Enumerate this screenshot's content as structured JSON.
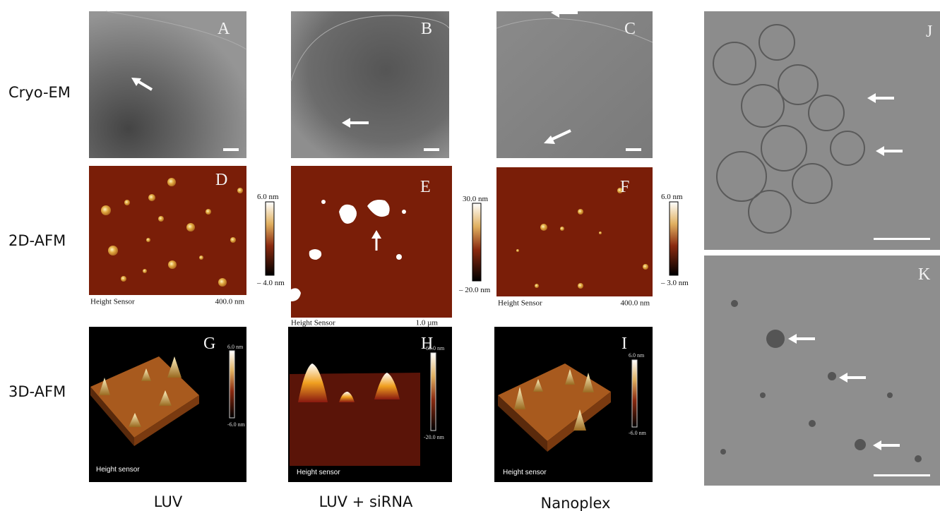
{
  "row_labels": [
    "Cryo-EM",
    "2D-AFM",
    "3D-AFM"
  ],
  "column_labels": [
    "LUV",
    "LUV + siRNA",
    "Nanoplex"
  ],
  "panel_letters": [
    "A",
    "B",
    "C",
    "D",
    "E",
    "F",
    "G",
    "H",
    "I",
    "J",
    "K"
  ],
  "afm_2d": [
    {
      "bar_label": "Height Sensor",
      "scale": "400.0 nm",
      "max": "6.0 nm",
      "min": "– 4.0 nm"
    },
    {
      "bar_label": "Height Sensor",
      "scale": "1.0 µm",
      "max": "30.0 nm",
      "min": "– 20.0 nm"
    },
    {
      "bar_label": "Height Sensor",
      "scale": "400.0 nm",
      "max": "6.0 nm",
      "min": "– 3.0 nm"
    }
  ],
  "afm_3d": [
    {
      "caption": "Height sensor",
      "max": "6.0 nm",
      "min": "-6.0 nm"
    },
    {
      "caption": "Height sensor",
      "max": "60.0 nm",
      "min": "-20.0 nm"
    },
    {
      "caption": "Height sensor",
      "max": "6.0 nm",
      "min": "-6.0 nm"
    }
  ]
}
